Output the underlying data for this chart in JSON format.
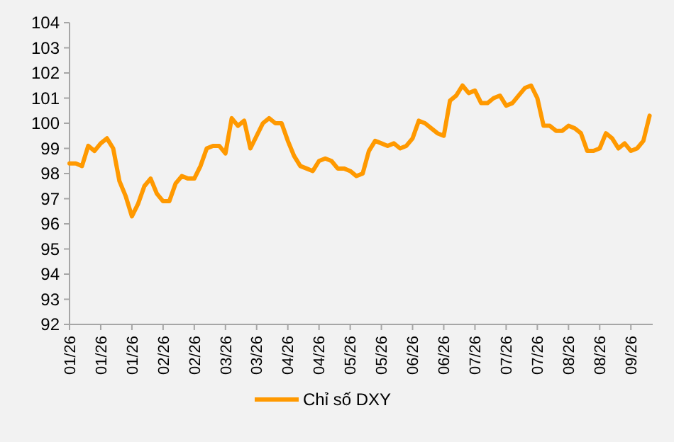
{
  "chart_data": {
    "type": "line",
    "legend": "bottom",
    "marker": "none",
    "grid": false,
    "ylim": [
      92,
      104
    ],
    "yticks": [
      92,
      93,
      94,
      95,
      96,
      97,
      98,
      99,
      100,
      101,
      102,
      103,
      104
    ],
    "categories": [
      "01/26",
      null,
      null,
      null,
      null,
      "01/26",
      null,
      null,
      null,
      null,
      "01/26",
      null,
      null,
      null,
      null,
      "02/26",
      null,
      null,
      null,
      null,
      "02/26",
      null,
      null,
      null,
      null,
      "03/26",
      null,
      null,
      null,
      null,
      "03/26",
      null,
      null,
      null,
      null,
      "04/26",
      null,
      null,
      null,
      null,
      "04/26",
      null,
      null,
      null,
      null,
      "05/26",
      null,
      null,
      null,
      null,
      "05/26",
      null,
      null,
      null,
      null,
      "06/26",
      null,
      null,
      null,
      null,
      "06/26",
      null,
      null,
      null,
      null,
      "07/26",
      null,
      null,
      null,
      null,
      "07/26",
      null,
      null,
      null,
      null,
      "07/26",
      null,
      null,
      null,
      null,
      "08/26",
      null,
      null,
      null,
      null,
      "08/26",
      null,
      null,
      null,
      null,
      "09/26",
      null,
      null,
      null
    ],
    "series": [
      {
        "name": "Chỉ số DXY",
        "color": "#ff9900",
        "values": [
          98.4,
          98.4,
          98.3,
          99.1,
          98.9,
          99.2,
          99.4,
          99.0,
          97.7,
          97.1,
          96.3,
          96.8,
          97.5,
          97.8,
          97.2,
          96.9,
          96.9,
          97.6,
          97.9,
          97.8,
          97.8,
          98.3,
          99.0,
          99.1,
          99.1,
          98.8,
          100.2,
          99.9,
          100.1,
          99.0,
          99.5,
          100.0,
          100.2,
          100.0,
          100.0,
          99.3,
          98.7,
          98.3,
          98.2,
          98.1,
          98.5,
          98.6,
          98.5,
          98.2,
          98.2,
          98.1,
          97.9,
          98.0,
          98.9,
          99.3,
          99.2,
          99.1,
          99.2,
          99.0,
          99.1,
          99.4,
          100.1,
          100.0,
          99.8,
          99.6,
          99.5,
          100.9,
          101.1,
          101.5,
          101.2,
          101.3,
          100.8,
          100.8,
          101.0,
          101.1,
          100.7,
          100.8,
          101.1,
          101.4,
          101.5,
          101.0,
          99.9,
          99.9,
          99.7,
          99.7,
          99.9,
          99.8,
          99.6,
          98.9,
          98.9,
          99.0,
          99.6,
          99.4,
          99.0,
          99.2,
          98.9,
          99.0,
          99.3,
          100.3
        ]
      }
    ]
  }
}
